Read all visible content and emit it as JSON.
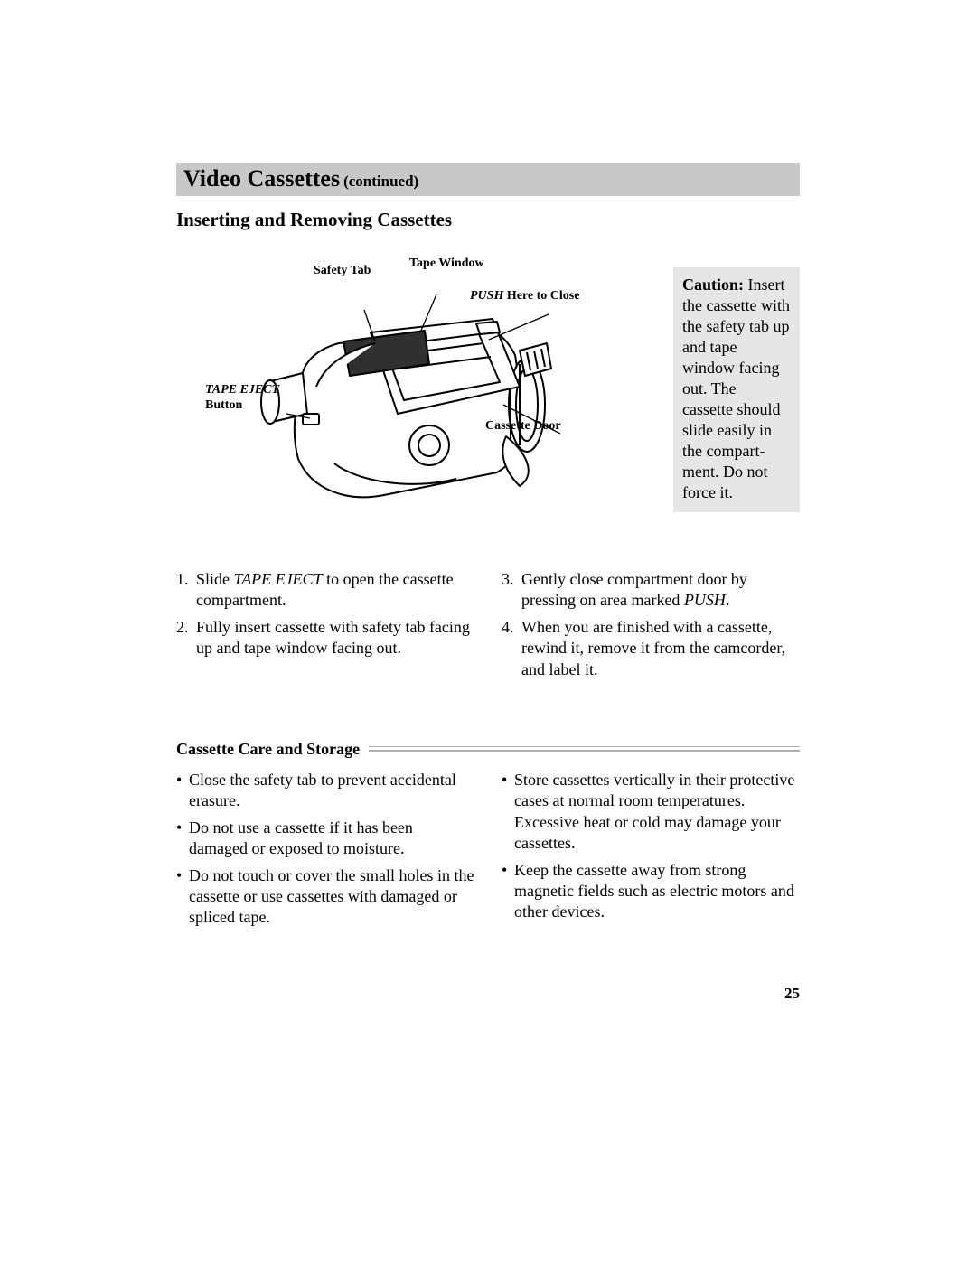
{
  "header": {
    "title": "Video Cassettes",
    "continued": "(continued)"
  },
  "subheading": "Inserting and Removing Cassettes",
  "figure": {
    "labels": {
      "safety_tab": "Safety Tab",
      "tape_window": "Tape Window",
      "push_italic": "PUSH",
      "push_rest": " Here to Close",
      "tape_eject_italic": "TAPE EJECT",
      "tape_eject_rest": "Button",
      "cassette_door": "Cassette Door"
    }
  },
  "caution": {
    "title": "Caution:",
    "body": "Insert the cassette with the safety tab up and tape window facing out.  The cassette should slide easily in the compart­ment.  Do not force it."
  },
  "steps": {
    "left": [
      {
        "n": "1.",
        "pre": "Slide ",
        "it": "TAPE EJECT",
        "post": " to open the cassette compartment."
      },
      {
        "n": "2.",
        "pre": "Fully insert cassette with safety tab facing up and tape window facing out.",
        "it": "",
        "post": ""
      }
    ],
    "right": [
      {
        "n": "3.",
        "pre": "Gently close compartment door by pressing on area marked ",
        "it": "PUSH",
        "post": "."
      },
      {
        "n": "4.",
        "pre": "When you are finished with a cassette, rewind it, remove it from the camcorder, and label it.",
        "it": "",
        "post": ""
      }
    ]
  },
  "care": {
    "heading": "Cassette Care and Storage",
    "left": [
      "Close the safety tab to prevent accidental erasure.",
      "Do not use a cassette if it has been damaged or exposed to moisture.",
      "Do not touch or cover the small holes in the cassette or use cassettes with damaged or spliced tape."
    ],
    "right": [
      "Store cassettes vertically in their protective cases at normal room temperatures.  Excessive heat or cold may damage your cassettes.",
      "Keep the cassette away from strong magnetic fields such as electric motors and other devices."
    ]
  },
  "page_number": "25",
  "colors": {
    "header_bg": "#c8c8c8",
    "caution_bg": "#e6e6e6",
    "rule": "#b0b0b0",
    "text": "#000000",
    "page_bg": "#ffffff"
  }
}
